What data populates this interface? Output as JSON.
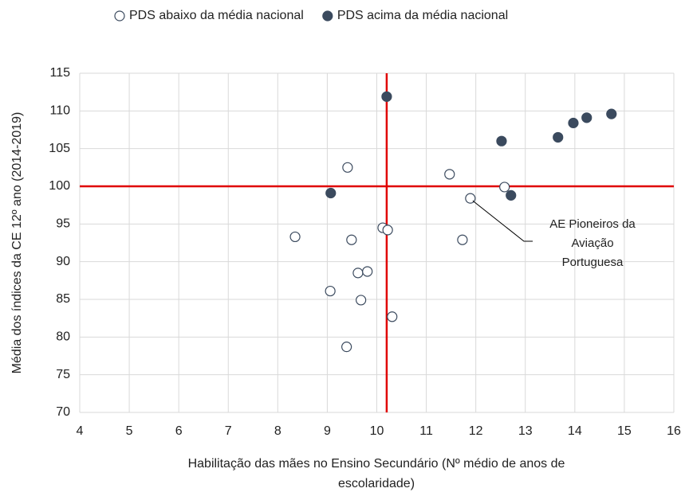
{
  "chart_data": {
    "type": "scatter",
    "xlabel": [
      "Habilitação das mães no Ensino Secundário (Nº médio de anos de",
      "escolaridade)"
    ],
    "ylabel": "Média dos índices da CE 12º ano (2014-2019)",
    "xlim": [
      4,
      16
    ],
    "xticks": [
      4,
      5,
      6,
      7,
      8,
      9,
      10,
      11,
      12,
      13,
      14,
      15,
      16
    ],
    "ylim": [
      70,
      115
    ],
    "yticks": [
      70,
      75,
      80,
      85,
      90,
      95,
      100,
      105,
      110,
      115
    ],
    "grid": true,
    "legend": "top",
    "reference_lines": {
      "x": 10.2,
      "y": 100,
      "color": "#e00000"
    },
    "series": [
      {
        "name": "PDS abaixo da média nacional",
        "color": "#ffffff",
        "stroke": "#3b4a5e",
        "x": [
          8.35,
          9.41,
          9.49,
          9.06,
          9.62,
          9.81,
          9.68,
          9.39,
          10.12,
          10.22,
          10.31,
          11.47,
          11.73,
          11.89,
          12.58
        ],
        "values": [
          93.3,
          102.5,
          92.9,
          86.1,
          88.5,
          88.7,
          84.9,
          78.7,
          94.5,
          94.2,
          82.7,
          101.6,
          92.9,
          98.4,
          99.9
        ]
      },
      {
        "name": "PDS acima da média nacional",
        "color": "#3b4a5e",
        "stroke": "#3b4a5e",
        "x": [
          9.07,
          10.2,
          12.52,
          12.71,
          13.66,
          13.97,
          14.24,
          14.74
        ],
        "values": [
          99.1,
          111.9,
          106.0,
          98.8,
          106.5,
          108.4,
          109.1,
          109.6
        ]
      }
    ],
    "annotation": {
      "lines": [
        "AE Pioneiros da",
        "Aviação",
        "Portuguesa"
      ],
      "x": 11.89,
      "y": 98.4
    }
  }
}
